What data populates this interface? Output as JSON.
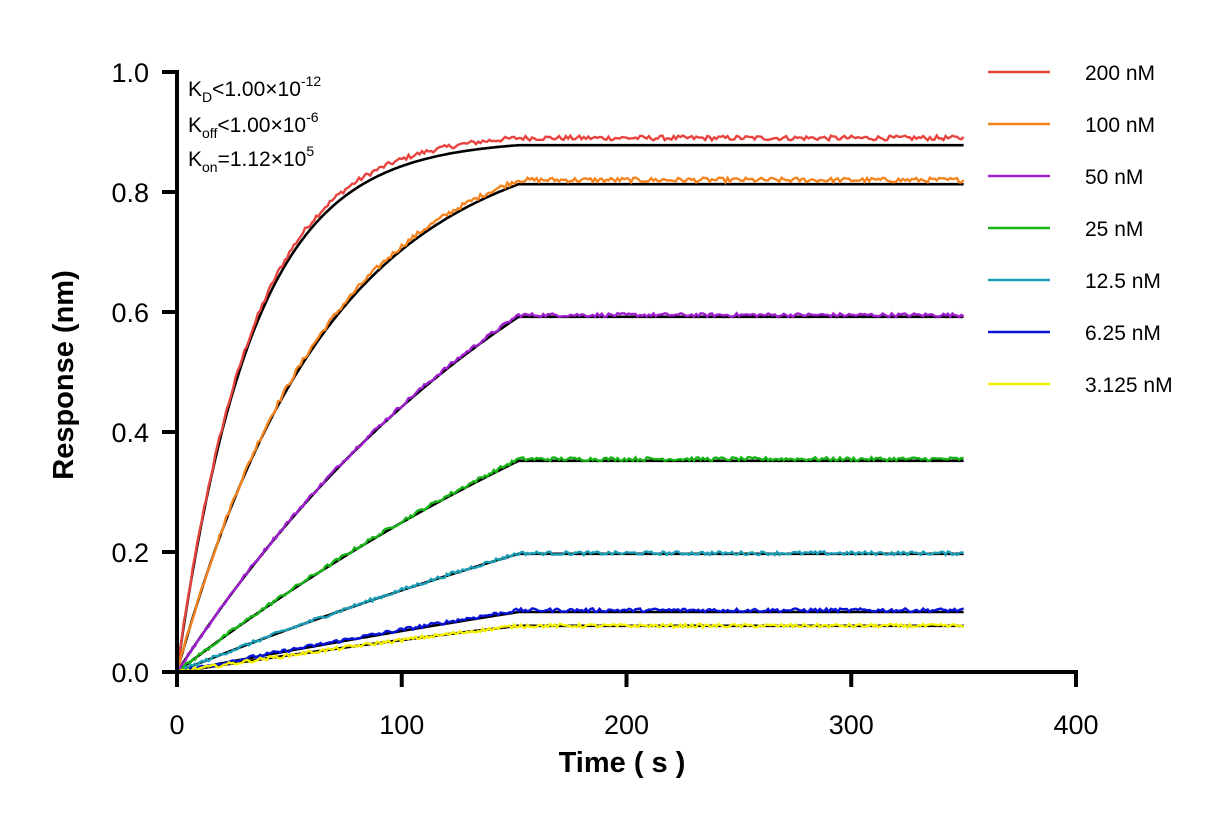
{
  "chart_data": {
    "type": "line",
    "title": "",
    "xlabel": "Time ( s )",
    "ylabel": "Response (nm)",
    "xlim": [
      0,
      400
    ],
    "ylim": [
      0,
      1.0
    ],
    "x_ticks": [
      "0",
      "100",
      "200",
      "300",
      "400"
    ],
    "y_ticks": [
      "0.0",
      "0.2",
      "0.4",
      "0.6",
      "0.8",
      "1.0"
    ],
    "x_tick_values": [
      0,
      100,
      200,
      300,
      400
    ],
    "y_tick_values": [
      0,
      0.2,
      0.4,
      0.6,
      0.8,
      1.0
    ],
    "grid": false,
    "legend_position": "right",
    "association_end": 152,
    "time_end": 350,
    "fit_color": "#000000",
    "annotations": {
      "kd": {
        "base": "K",
        "sub": "D",
        "text": "<1.00×10",
        "sup": "-12"
      },
      "koff": {
        "base": "K",
        "sub": "off",
        "text": "<1.00×10",
        "sup": "-6"
      },
      "kon": {
        "base": "K",
        "sub": "on",
        "text": "=1.12×10",
        "sup": "5"
      }
    },
    "series": [
      {
        "name": "200 nM",
        "color": "#e8443f",
        "plateau": 0.89,
        "fit_plateau": 0.878,
        "kobs": 0.03,
        "noise": 0.004
      },
      {
        "name": "100 nM",
        "color": "#f5841f",
        "plateau": 0.82,
        "fit_plateau": 0.813,
        "kobs": 0.015,
        "noise": 0.004
      },
      {
        "name": "50 nM",
        "color": "#a020d0",
        "plateau": 0.595,
        "fit_plateau": 0.592,
        "kobs": 0.0055,
        "noise": 0.003
      },
      {
        "name": "25 nM",
        "color": "#18b418",
        "plateau": 0.355,
        "fit_plateau": 0.352,
        "kobs": 0.003,
        "noise": 0.003
      },
      {
        "name": "12.5 nM",
        "color": "#1a9db5",
        "plateau": 0.198,
        "fit_plateau": 0.197,
        "kobs": 0.002,
        "noise": 0.003
      },
      {
        "name": "6.25 nM",
        "color": "#0a14d8",
        "plateau": 0.103,
        "fit_plateau": 0.1,
        "kobs": 0.0015,
        "noise": 0.003
      },
      {
        "name": "3.125 nM",
        "color": "#f5f000",
        "plateau": 0.077,
        "fit_plateau": 0.077,
        "kobs": 0.002,
        "noise": 0.003
      }
    ]
  }
}
